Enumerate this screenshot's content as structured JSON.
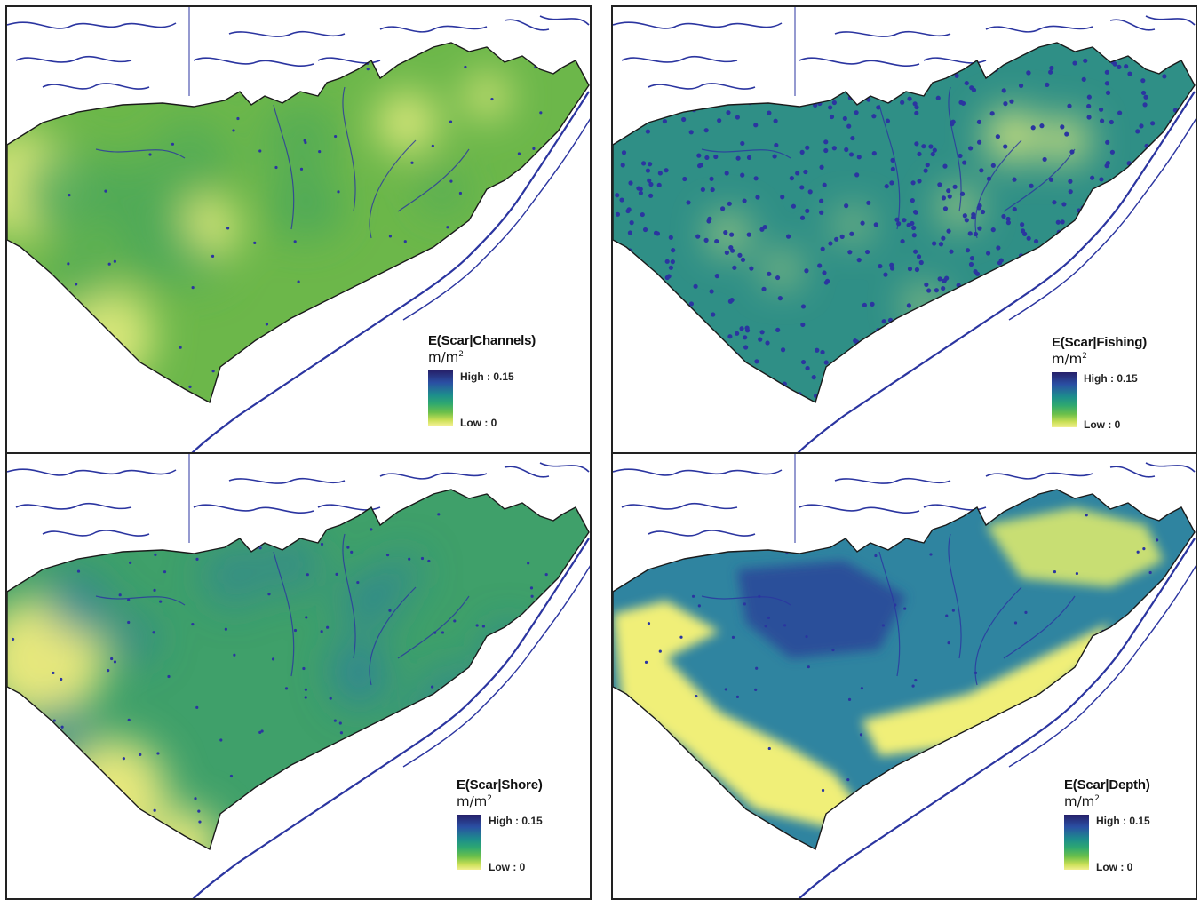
{
  "panels": [
    {
      "id": "channels",
      "legend_title": "E(Scar|Channels)",
      "unit": "m/m",
      "unit_sup": "2",
      "high_label": "High : 0.15",
      "low_label": "Low : 0",
      "base_color": "#6cb74a",
      "light_color": "#d7e679",
      "texture": "smooth-yellow-green"
    },
    {
      "id": "fishing",
      "legend_title": "E(Scar|Fishing)",
      "unit": "m/m",
      "unit_sup": "2",
      "high_label": "High : 0.15",
      "low_label": "Low : 0",
      "base_color": "#2f8f86",
      "light_color": "#e6ee7c",
      "texture": "dense-blue-dots"
    },
    {
      "id": "shore",
      "legend_title": "E(Scar|Shore)",
      "unit": "m/m",
      "unit_sup": "2",
      "high_label": "High : 0.15",
      "low_label": "Low : 0",
      "base_color": "#3fa06a",
      "light_color": "#e6e77d",
      "texture": "blue-green-contours"
    },
    {
      "id": "depth",
      "legend_title": "E(Scar|Depth)",
      "unit": "m/m",
      "unit_sup": "2",
      "high_label": "High : 0.15",
      "low_label": "Low : 0",
      "base_color": "#2f84a0",
      "light_color": "#f0ef78",
      "texture": "bathymetric-patches"
    }
  ],
  "colors": {
    "coastline": "#2b35a0",
    "boundary": "#1a1a1a",
    "ramp_high": "#262069",
    "ramp_low": "#f2f090"
  }
}
